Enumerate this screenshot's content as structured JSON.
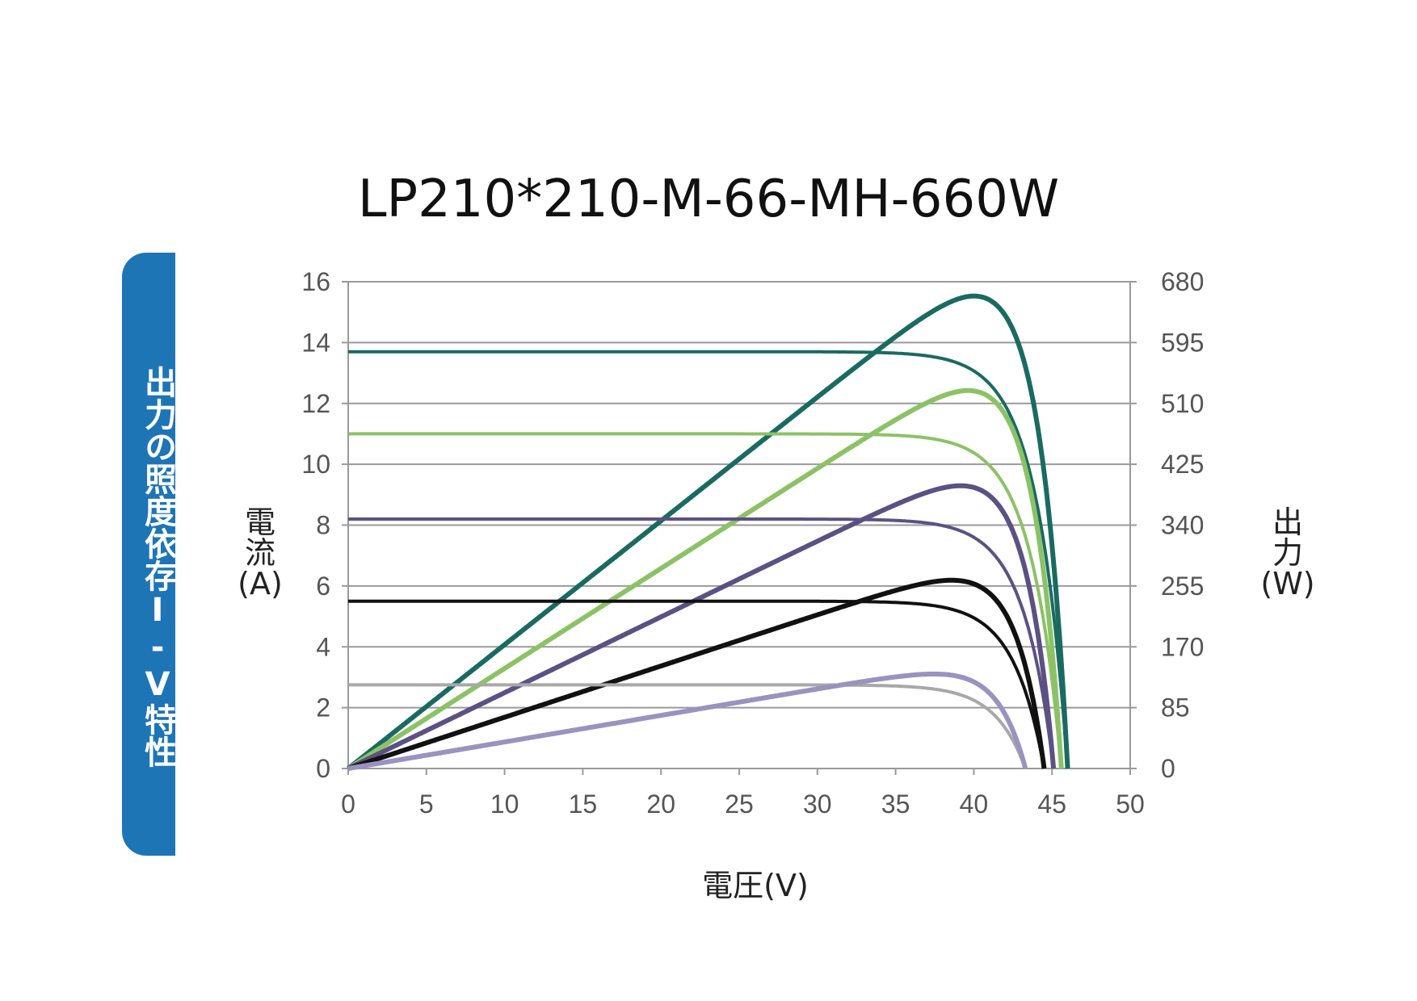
{
  "side_label": "出力の照度依存I-V特性",
  "chart_data": {
    "type": "line",
    "title": "LP210*210-M-66-MH-660W",
    "xlabel": "電圧(V)",
    "ylabel_left": [
      "電",
      "流",
      "(A)"
    ],
    "ylabel_right": [
      "出",
      "力",
      "(W)"
    ],
    "xlim": [
      0,
      50
    ],
    "xticks": [
      "0",
      "5",
      "10",
      "15",
      "20",
      "25",
      "30",
      "35",
      "40",
      "45",
      "50"
    ],
    "ylim_left": [
      0,
      16
    ],
    "yticks_left": [
      "0",
      "2",
      "4",
      "6",
      "8",
      "10",
      "12",
      "14",
      "16"
    ],
    "ylim_right": [
      0,
      680
    ],
    "yticks_right": [
      "0",
      "85",
      "170",
      "255",
      "340",
      "425",
      "510",
      "595",
      "680"
    ],
    "grid": "horizontal",
    "series": [
      {
        "color": "#1a6a62",
        "isc": 13.7,
        "voc": 46.0,
        "pmax": 660,
        "vmp": 38.3
      },
      {
        "color": "#8cc266",
        "isc": 11.0,
        "voc": 45.6,
        "pmax": 528,
        "vmp": 38.2
      },
      {
        "color": "#5b5182",
        "isc": 8.2,
        "voc": 45.1,
        "pmax": 395,
        "vmp": 38.0
      },
      {
        "color": "#111111",
        "isc": 5.5,
        "voc": 44.5,
        "pmax": 263,
        "vmp": 37.8
      },
      {
        "color": "#a8a8a8",
        "isc": 2.75,
        "voc": 43.3,
        "pmax": 132,
        "vmp": 37.5,
        "power_color": "#9a92bf"
      }
    ]
  }
}
